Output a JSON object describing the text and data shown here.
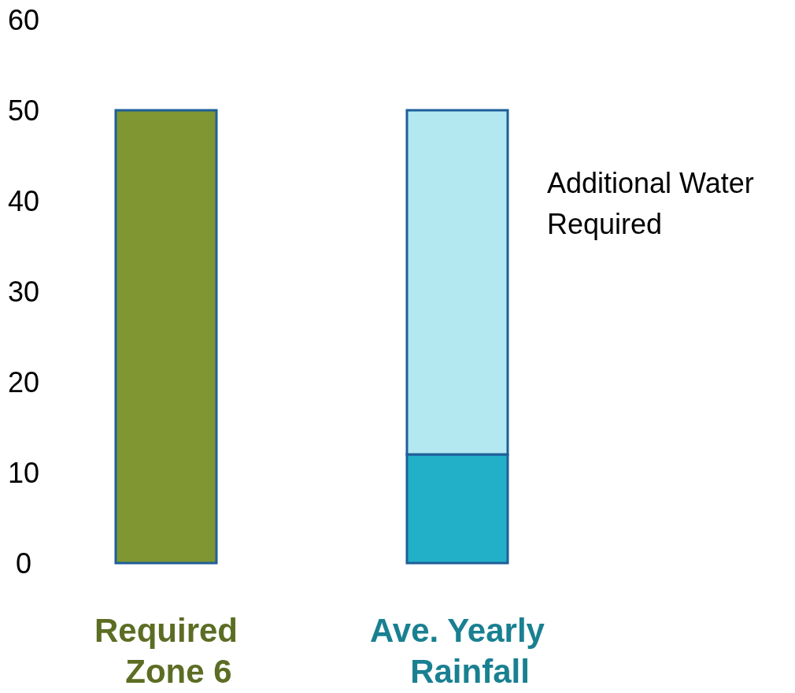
{
  "chart_data": {
    "type": "bar",
    "stacked": true,
    "categories": [
      "Required\nZone 6",
      "Ave. Yearly\nRainfall"
    ],
    "series": [
      {
        "colors": [
          "#7f9632",
          "#22b0c8"
        ],
        "values": [
          50,
          12
        ]
      },
      {
        "name": "Additional Water Required",
        "color": "#b3e8f1",
        "values": [
          null,
          38
        ]
      }
    ],
    "ylim": [
      0,
      60
    ],
    "yticks": [
      0,
      10,
      20,
      30,
      40,
      50,
      60
    ],
    "grid": false
  }
}
